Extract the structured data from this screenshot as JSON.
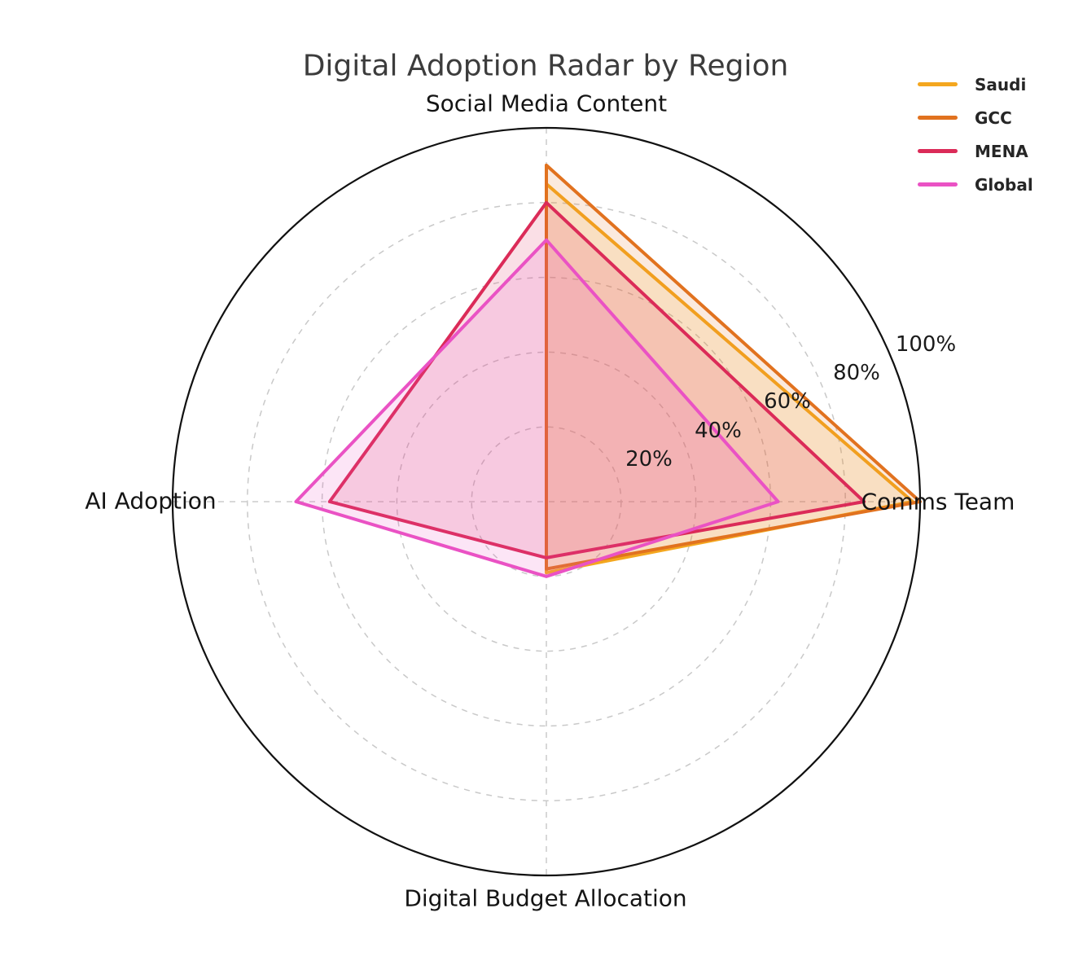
{
  "title": "Digital Adoption Radar by Region",
  "chart_data": {
    "type": "radar",
    "title": "Digital Adoption Radar by Region",
    "categories": [
      "Social Media Content",
      "Comms Team",
      "Digital Budget Allocation",
      "AI Adoption"
    ],
    "axis_angles_deg": [
      90,
      0,
      270,
      180
    ],
    "r_max": 100,
    "radial_ticks": [
      {
        "value": 20,
        "label": "20%"
      },
      {
        "value": 40,
        "label": "40%"
      },
      {
        "value": 60,
        "label": "60%"
      },
      {
        "value": 80,
        "label": "80%"
      },
      {
        "value": 100,
        "label": "100%"
      }
    ],
    "grid": "dashed light-gray circles at each tick, dashed vertical and horizontal spokes, solid black outer circle",
    "legend_position": "upper right",
    "series": [
      {
        "name": "Saudi",
        "color": "#F4A71F",
        "values": [
          85,
          98,
          19,
          0
        ]
      },
      {
        "name": "GCC",
        "color": "#E1721F",
        "values": [
          90,
          100,
          18,
          0
        ]
      },
      {
        "name": "MENA",
        "color": "#DB2B58",
        "values": [
          80,
          85,
          15,
          58
        ]
      },
      {
        "name": "Global",
        "color": "#EA52C4",
        "values": [
          70,
          62,
          20,
          67
        ]
      }
    ]
  },
  "legend": {
    "items": [
      {
        "label": "Saudi"
      },
      {
        "label": "GCC"
      },
      {
        "label": "MENA"
      },
      {
        "label": "Global"
      }
    ]
  }
}
